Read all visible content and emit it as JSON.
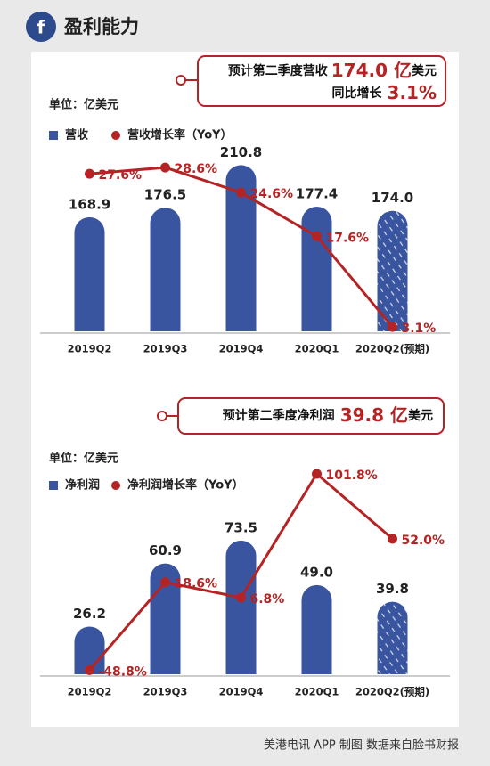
{
  "header": {
    "title": "盈利能力",
    "icon": "f"
  },
  "footer": "美港电讯 APP 制图  数据来自脸书财报",
  "chart_data": [
    {
      "type": "bar",
      "unit": "单位：亿美元",
      "annotation": [
        [
          "预计第二季度营收",
          "174.0 亿",
          "美元"
        ],
        [
          "同比增长",
          "3.1%"
        ]
      ],
      "categories": [
        "2019Q2",
        "2019Q3",
        "2019Q4",
        "2020Q1",
        "2020Q2(预期)"
      ],
      "ylim": [
        77,
        229
      ],
      "y2lim": [
        2.4,
        32.6
      ],
      "series": [
        {
          "name": "营收",
          "type": "bar",
          "color": "#3a55a0",
          "values": [
            168.9,
            176.5,
            210.8,
            177.4,
            174.0
          ],
          "value_labels": [
            "168.9",
            "176.5",
            "210.8",
            "177.4",
            "174.0"
          ],
          "hatched": [
            false,
            false,
            false,
            false,
            true
          ]
        },
        {
          "name": "营收增长率（YoY）",
          "type": "line",
          "axis": "y2",
          "color": "#b52424",
          "values": [
            27.6,
            28.6,
            24.6,
            17.6,
            3.1
          ],
          "value_labels": [
            "27.6%",
            "28.6%",
            "24.6%",
            "17.6%",
            "3.1%"
          ]
        }
      ]
    },
    {
      "type": "bar",
      "unit": "单位：亿美元",
      "annotation": [
        [
          "预计第二季度净利润",
          "39.8 亿",
          "美元"
        ]
      ],
      "categories": [
        "2019Q2",
        "2019Q3",
        "2019Q4",
        "2020Q1",
        "2020Q2(预期)"
      ],
      "ylim": [
        0,
        116
      ],
      "y2lim": [
        -52,
        110
      ],
      "series": [
        {
          "name": "净利润",
          "type": "bar",
          "color": "#3a55a0",
          "values": [
            26.2,
            60.9,
            73.5,
            49.0,
            39.8
          ],
          "value_labels": [
            "26.2",
            "60.9",
            "73.5",
            "49.0",
            "39.8"
          ],
          "hatched": [
            false,
            false,
            false,
            false,
            true
          ]
        },
        {
          "name": "净利润增长率（YoY）",
          "type": "line",
          "axis": "y2",
          "color": "#b52424",
          "values": [
            -48.8,
            18.6,
            6.8,
            101.8,
            52.0
          ],
          "value_labels": [
            "-48.8%",
            "18.6%",
            "6.8%",
            "101.8%",
            "52.0%"
          ]
        }
      ]
    }
  ]
}
